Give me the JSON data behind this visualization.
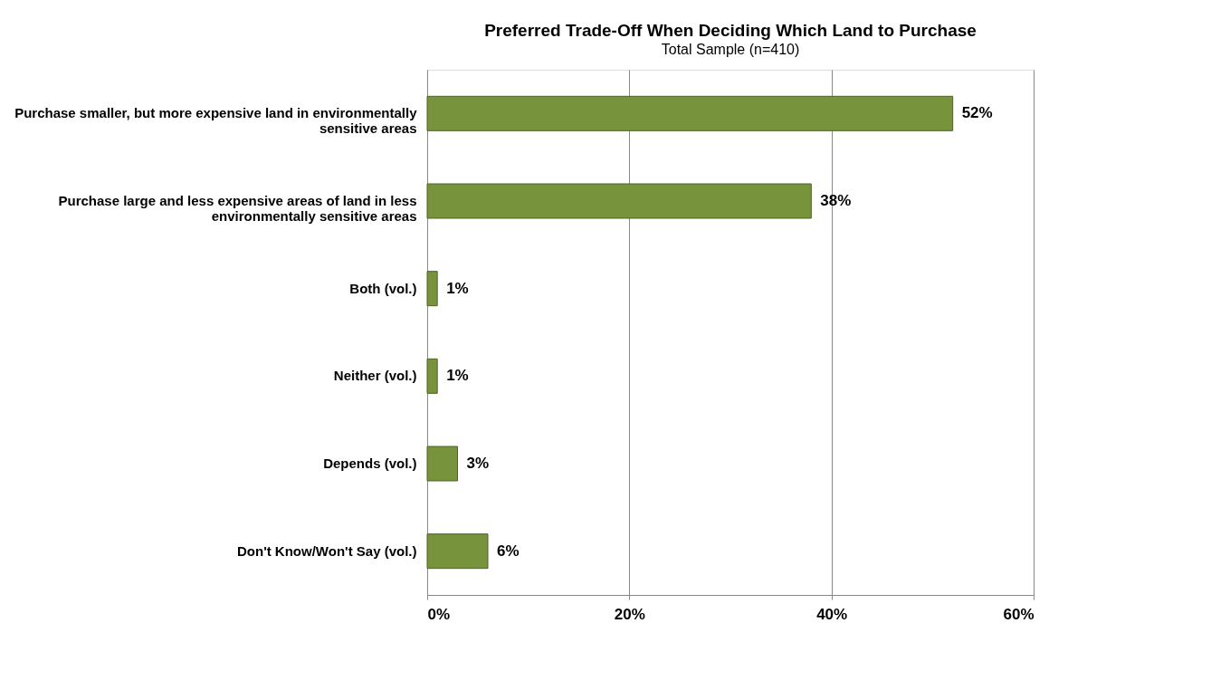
{
  "chart_data": {
    "type": "bar",
    "orientation": "horizontal",
    "title": "Preferred Trade-Off When Deciding Which Land to Purchase",
    "subtitle": "Total Sample (n=410)",
    "categories": [
      "Purchase smaller, but more expensive land in environmentally sensitive areas",
      "Purchase large and less expensive areas of land in less environmentally sensitive areas",
      "Both (vol.)",
      "Neither (vol.)",
      "Depends (vol.)",
      "Don't Know/Won't Say (vol.)"
    ],
    "values": [
      52,
      38,
      1,
      1,
      3,
      6
    ],
    "value_labels": [
      "52%",
      "38%",
      "1%",
      "1%",
      "3%",
      "6%"
    ],
    "color": "#77933c",
    "xlim": [
      0,
      60
    ],
    "xticks": [
      {
        "value": 0,
        "label": "0%"
      },
      {
        "value": 20,
        "label": "20%"
      },
      {
        "value": 40,
        "label": "40%"
      },
      {
        "value": 60,
        "label": "60%"
      }
    ],
    "grid": "x"
  }
}
